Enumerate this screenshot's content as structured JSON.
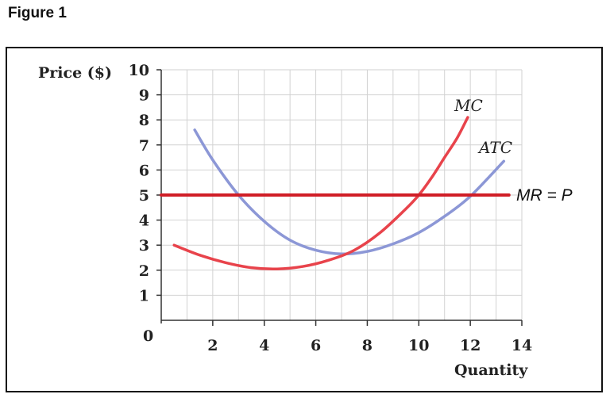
{
  "caption": "Figure 1",
  "chart_data": {
    "type": "line",
    "ylabel": "Price ($)",
    "xlabel": "Quantity",
    "xlim": [
      0,
      14
    ],
    "ylim": [
      0,
      10
    ],
    "x_ticks": [
      2,
      4,
      6,
      8,
      10,
      12,
      14
    ],
    "y_ticks": [
      1,
      2,
      3,
      4,
      5,
      6,
      7,
      8,
      9,
      10
    ],
    "origin_label": "0",
    "grid": true,
    "series": [
      {
        "name": "MC",
        "color": "#e8434b",
        "points": [
          [
            0.5,
            3.0
          ],
          [
            1.5,
            2.6
          ],
          [
            2.5,
            2.3
          ],
          [
            3.5,
            2.1
          ],
          [
            4.5,
            2.05
          ],
          [
            5.5,
            2.15
          ],
          [
            6.5,
            2.4
          ],
          [
            7.5,
            2.8
          ],
          [
            8.5,
            3.5
          ],
          [
            9.5,
            4.45
          ],
          [
            10.0,
            5.0
          ],
          [
            10.5,
            5.7
          ],
          [
            11.0,
            6.5
          ],
          [
            11.5,
            7.3
          ],
          [
            11.9,
            8.1
          ]
        ]
      },
      {
        "name": "ATC",
        "color": "#8c97d6",
        "points": [
          [
            1.3,
            7.6
          ],
          [
            2.0,
            6.4
          ],
          [
            3.0,
            5.0
          ],
          [
            4.0,
            3.95
          ],
          [
            5.0,
            3.2
          ],
          [
            6.0,
            2.8
          ],
          [
            7.0,
            2.65
          ],
          [
            8.0,
            2.75
          ],
          [
            9.0,
            3.05
          ],
          [
            10.0,
            3.5
          ],
          [
            11.0,
            4.15
          ],
          [
            12.0,
            4.95
          ],
          [
            13.3,
            6.35
          ]
        ]
      },
      {
        "name": "MR = P",
        "color": "#d01e27",
        "points": [
          [
            0,
            5
          ],
          [
            13.5,
            5
          ]
        ]
      }
    ]
  }
}
